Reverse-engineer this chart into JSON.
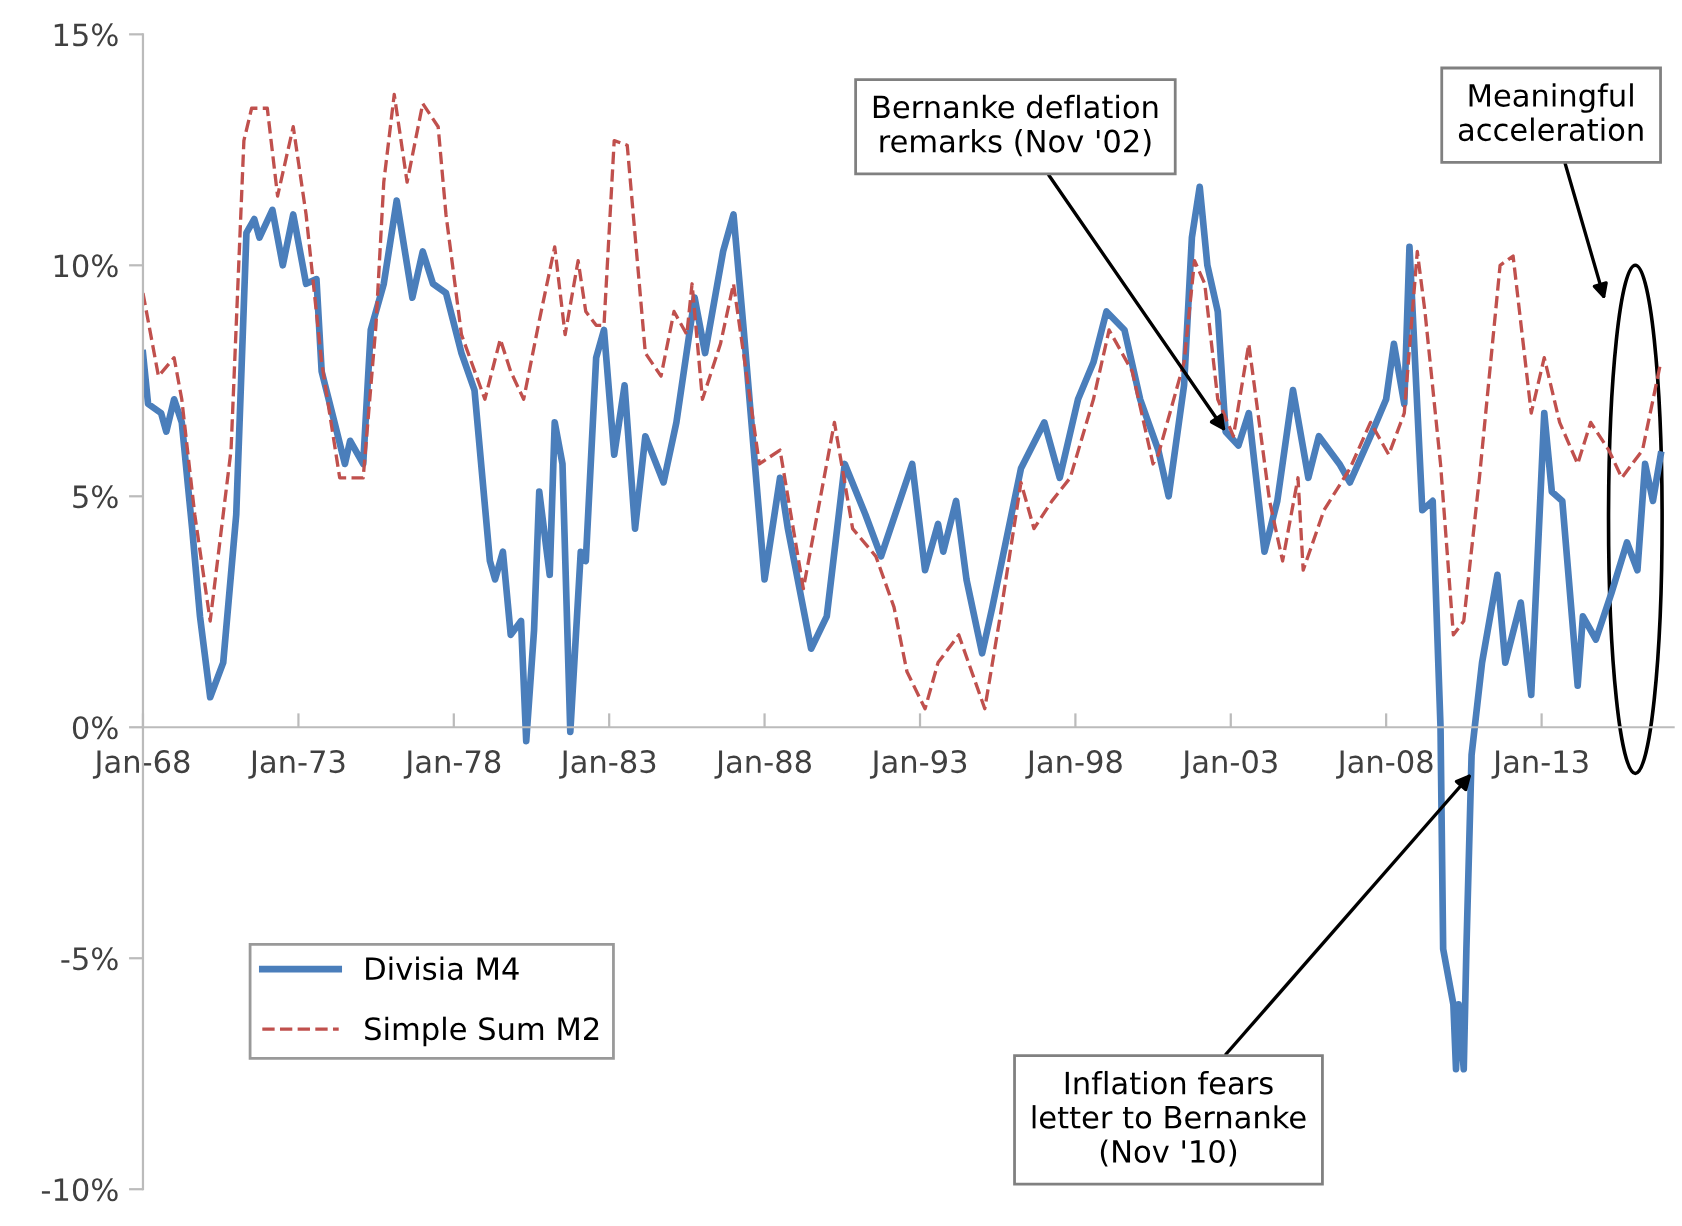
{
  "chart_data": {
    "type": "line",
    "xlim": [
      "1968-01",
      "2017-04"
    ],
    "xticks": [
      {
        "value": "1968-01",
        "label": "Jan-68"
      },
      {
        "value": "1973-01",
        "label": "Jan-73"
      },
      {
        "value": "1978-01",
        "label": "Jan-78"
      },
      {
        "value": "1983-01",
        "label": "Jan-83"
      },
      {
        "value": "1988-01",
        "label": "Jan-88"
      },
      {
        "value": "1993-01",
        "label": "Jan-93"
      },
      {
        "value": "1998-01",
        "label": "Jan-98"
      },
      {
        "value": "2003-01",
        "label": "Jan-03"
      },
      {
        "value": "2008-01",
        "label": "Jan-08"
      },
      {
        "value": "2013-01",
        "label": "Jan-13"
      }
    ],
    "ylim": [
      -10,
      15
    ],
    "yticks": [
      {
        "value": -10,
        "label": "-10%"
      },
      {
        "value": -5,
        "label": "-5%"
      },
      {
        "value": 0,
        "label": "0%"
      },
      {
        "value": 5,
        "label": "5%"
      },
      {
        "value": 10,
        "label": "10%"
      },
      {
        "value": 15,
        "label": "15%"
      }
    ],
    "grid": false,
    "legend": "bottom left",
    "marker": "none",
    "series": [
      {
        "name": "Divisia M4",
        "color": "#4a7ebb",
        "line_style": "solid",
        "x": [
          "1968-01",
          "1968-03",
          "1968-08",
          "1968-10",
          "1969-01",
          "1969-04",
          "1969-08",
          "1969-11",
          "1970-03",
          "1970-08",
          "1971-01",
          "1971-05",
          "1971-08",
          "1971-10",
          "1972-03",
          "1972-07",
          "1972-11",
          "1973-04",
          "1973-08",
          "1973-10",
          "1974-03",
          "1974-07",
          "1974-09",
          "1975-02",
          "1975-05",
          "1975-10",
          "1976-03",
          "1976-09",
          "1977-01",
          "1977-05",
          "1977-10",
          "1978-04",
          "1978-09",
          "1979-03",
          "1979-05",
          "1979-08",
          "1979-11",
          "1980-03",
          "1980-05",
          "1980-08",
          "1980-10",
          "1981-02",
          "1981-04",
          "1981-07",
          "1981-10",
          "1982-02",
          "1982-04",
          "1982-08",
          "1982-11",
          "1983-03",
          "1983-07",
          "1983-11",
          "1984-03",
          "1984-10",
          "1985-03",
          "1985-10",
          "1986-02",
          "1986-09",
          "1987-01",
          "1987-05",
          "1988-01",
          "1988-07",
          "1988-10",
          "1989-07",
          "1990-01",
          "1990-08",
          "1991-04",
          "1991-10",
          "1992-10",
          "1993-03",
          "1993-08",
          "1993-10",
          "1994-03",
          "1994-07",
          "1995-01",
          "1995-05",
          "1996-04",
          "1997-01",
          "1997-07",
          "1998-02",
          "1998-08",
          "1999-01",
          "1999-08",
          "2000-02",
          "2000-09",
          "2001-01",
          "2001-07",
          "2001-10",
          "2002-01",
          "2002-04",
          "2002-08",
          "2002-11",
          "2003-04",
          "2003-08",
          "2004-02",
          "2004-07",
          "2005-01",
          "2005-07",
          "2005-11",
          "2006-07",
          "2006-11",
          "2007-07",
          "2008-01",
          "2008-04",
          "2008-08",
          "2008-10",
          "2009-03",
          "2009-07",
          "2009-10",
          "2009-11",
          "2010-03",
          "2010-04",
          "2010-05",
          "2010-07",
          "2010-08",
          "2010-10",
          "2011-02",
          "2011-08",
          "2011-11",
          "2012-05",
          "2012-09",
          "2013-02",
          "2013-05",
          "2013-09",
          "2014-03",
          "2014-05",
          "2014-10",
          "2015-04",
          "2015-10",
          "2016-02",
          "2016-05",
          "2016-08",
          "2016-11"
        ],
        "values": [
          8.1,
          7.0,
          6.8,
          6.4,
          7.1,
          6.6,
          4.3,
          2.4,
          0.65,
          1.4,
          4.6,
          10.7,
          11.0,
          10.6,
          11.2,
          10.0,
          11.1,
          9.6,
          9.7,
          7.7,
          6.6,
          5.7,
          6.2,
          5.7,
          8.6,
          9.6,
          11.4,
          9.3,
          10.3,
          9.6,
          9.4,
          8.1,
          7.3,
          3.6,
          3.2,
          3.8,
          2.0,
          2.3,
          -0.3,
          2.1,
          5.1,
          3.3,
          6.6,
          5.7,
          -0.1,
          3.8,
          3.6,
          8.0,
          8.6,
          5.9,
          7.4,
          4.3,
          6.3,
          5.3,
          6.6,
          9.3,
          8.1,
          10.3,
          11.1,
          8.6,
          3.2,
          5.4,
          4.3,
          1.7,
          2.4,
          5.7,
          4.6,
          3.7,
          5.7,
          3.4,
          4.4,
          3.8,
          4.9,
          3.2,
          1.6,
          2.6,
          5.6,
          6.6,
          5.4,
          7.1,
          7.9,
          9.0,
          8.6,
          7.1,
          6.0,
          5.0,
          7.4,
          10.6,
          11.7,
          10.0,
          9.0,
          6.4,
          6.1,
          6.8,
          3.8,
          4.9,
          7.3,
          5.4,
          6.3,
          5.7,
          5.3,
          6.3,
          7.1,
          8.3,
          7.0,
          10.4,
          4.7,
          4.9,
          0.0,
          -4.8,
          -6.0,
          -7.4,
          -6.0,
          -7.4,
          -4.8,
          -0.6,
          1.4,
          3.3,
          1.4,
          2.7,
          0.7,
          6.8,
          5.1,
          4.9,
          0.9,
          2.4,
          1.9,
          2.9,
          4.0,
          3.4,
          5.7,
          4.9,
          5.9
        ]
      },
      {
        "name": "Simple Sum M2",
        "color": "#c0504d",
        "line_style": "dashed",
        "x": [
          "1968-01",
          "1968-07",
          "1969-01",
          "1969-04",
          "1969-09",
          "1970-03",
          "1970-11",
          "1971-04",
          "1971-07",
          "1972-01",
          "1972-05",
          "1972-11",
          "1973-04",
          "1973-10",
          "1974-05",
          "1975-02",
          "1975-07",
          "1975-10",
          "1976-02",
          "1976-07",
          "1977-01",
          "1977-07",
          "1977-10",
          "1978-04",
          "1979-01",
          "1979-07",
          "1979-11",
          "1980-04",
          "1980-10",
          "1981-04",
          "1981-08",
          "1982-01",
          "1982-04",
          "1982-08",
          "1982-11",
          "1983-03",
          "1983-08",
          "1984-03",
          "1984-09",
          "1985-02",
          "1985-07",
          "1985-09",
          "1986-01",
          "1986-08",
          "1987-01",
          "1987-11",
          "1988-07",
          "1989-04",
          "1990-04",
          "1990-11",
          "1991-08",
          "1992-03",
          "1992-08",
          "1993-03",
          "1993-08",
          "1994-04",
          "1994-09",
          "1995-02",
          "1995-08",
          "1996-04",
          "1996-09",
          "1997-04",
          "1997-11",
          "1998-08",
          "1999-02",
          "1999-11",
          "2000-07",
          "2000-09",
          "2001-07",
          "2001-11",
          "2002-03",
          "2002-08",
          "2003-02",
          "2003-08",
          "2004-04",
          "2004-09",
          "2005-03",
          "2005-05",
          "2006-01",
          "2006-11",
          "2007-07",
          "2008-02",
          "2008-08",
          "2009-01",
          "2009-04",
          "2009-10",
          "2010-03",
          "2010-07",
          "2011-01",
          "2011-09",
          "2012-02",
          "2012-09",
          "2013-02",
          "2013-08",
          "2014-03",
          "2014-08",
          "2015-03",
          "2015-08",
          "2016-04",
          "2016-11"
        ],
        "values": [
          9.4,
          7.6,
          8.0,
          7.1,
          4.6,
          2.3,
          6.0,
          12.7,
          13.4,
          13.4,
          11.5,
          13.0,
          11.1,
          7.9,
          5.4,
          5.4,
          8.7,
          11.8,
          13.7,
          11.8,
          13.5,
          13.0,
          11.1,
          8.5,
          7.1,
          8.4,
          7.7,
          7.1,
          8.8,
          10.4,
          8.5,
          10.1,
          9.0,
          8.7,
          8.7,
          12.7,
          12.6,
          8.1,
          7.6,
          9.0,
          8.5,
          9.6,
          7.1,
          8.3,
          9.6,
          5.7,
          6.0,
          3.0,
          6.6,
          4.3,
          3.7,
          2.6,
          1.2,
          0.4,
          1.4,
          2.0,
          1.2,
          0.4,
          2.4,
          5.3,
          4.3,
          4.9,
          5.4,
          7.1,
          8.6,
          7.7,
          5.7,
          5.9,
          7.9,
          10.1,
          9.6,
          7.1,
          6.3,
          8.3,
          4.9,
          3.6,
          5.4,
          3.4,
          4.7,
          5.6,
          6.6,
          5.9,
          6.8,
          10.3,
          9.0,
          5.7,
          2.0,
          2.3,
          5.4,
          10.0,
          10.2,
          6.8,
          8.0,
          6.6,
          5.7,
          6.6,
          6.0,
          5.4,
          6.0,
          7.9
        ]
      }
    ],
    "annotations": [
      {
        "text": "Bernanke deflation\nremarks (Nov '02)",
        "x": "2002-11",
        "y": 6.4
      },
      {
        "text": "Inflation fears\nletter to Bernanke\n(Nov '10)",
        "x": "2010-10",
        "y": -1.0
      },
      "Meaningful\nacceleration"
    ]
  }
}
